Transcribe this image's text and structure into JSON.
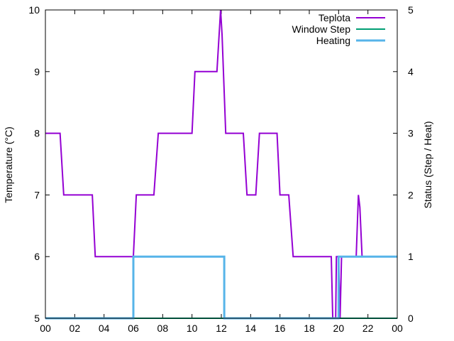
{
  "chart_data": {
    "type": "line",
    "xlabel": "",
    "ylabel": "Temperature (°C)",
    "y2label": "Status (Step / Heat)",
    "xlim": [
      0,
      24
    ],
    "ylim": [
      5,
      10
    ],
    "y2lim": [
      0,
      5
    ],
    "x_ticks": [
      "00",
      "02",
      "04",
      "06",
      "08",
      "10",
      "12",
      "14",
      "16",
      "18",
      "20",
      "22",
      "00"
    ],
    "y_ticks": [
      "5",
      "6",
      "7",
      "8",
      "9",
      "10"
    ],
    "y2_ticks": [
      "0",
      "1",
      "2",
      "3",
      "4",
      "5"
    ],
    "legend_position": "top-right",
    "series": [
      {
        "name": "Teplota",
        "axis": "y",
        "color": "#9400d3",
        "step": false,
        "points": [
          [
            0,
            8
          ],
          [
            1.0,
            8
          ],
          [
            1.25,
            7
          ],
          [
            3.2,
            7
          ],
          [
            3.4,
            6
          ],
          [
            6.0,
            6
          ],
          [
            6.2,
            7
          ],
          [
            7.4,
            7
          ],
          [
            7.7,
            8
          ],
          [
            10.0,
            8
          ],
          [
            10.2,
            9
          ],
          [
            11.7,
            9
          ],
          [
            11.85,
            9.6
          ],
          [
            11.95,
            10
          ],
          [
            12.05,
            9.6
          ],
          [
            12.3,
            8
          ],
          [
            13.5,
            8
          ],
          [
            13.75,
            7
          ],
          [
            14.35,
            7
          ],
          [
            14.6,
            8
          ],
          [
            15.8,
            8
          ],
          [
            16.0,
            7
          ],
          [
            16.6,
            7
          ],
          [
            16.9,
            6
          ],
          [
            19.5,
            6
          ],
          [
            19.6,
            5
          ],
          [
            19.8,
            5
          ],
          [
            19.85,
            6
          ],
          [
            20.0,
            6
          ],
          [
            20.1,
            5
          ],
          [
            20.2,
            6
          ],
          [
            21.2,
            6
          ],
          [
            21.35,
            7
          ],
          [
            21.45,
            6.8
          ],
          [
            21.6,
            6
          ]
        ]
      },
      {
        "name": "Window Step",
        "axis": "y2",
        "color": "#009e73",
        "step": false,
        "points": [
          [
            0,
            0
          ],
          [
            24,
            0
          ]
        ]
      },
      {
        "name": "Heating",
        "axis": "y2",
        "color": "#56b4e9",
        "step": false,
        "points": [
          [
            0,
            0
          ],
          [
            6.0,
            0
          ],
          [
            6.0,
            1
          ],
          [
            12.2,
            1
          ],
          [
            12.2,
            0
          ],
          [
            20.0,
            0
          ],
          [
            20.0,
            1
          ],
          [
            24,
            1
          ]
        ]
      }
    ]
  }
}
